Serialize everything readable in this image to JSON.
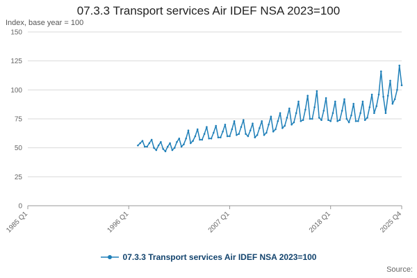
{
  "page": {
    "title": "07.3.3 Transport services Air IDEF NSA 2023=100",
    "subtitle": "Index, base year = 100",
    "source_label": "Source:"
  },
  "legend": {
    "label": "07.3.3 Transport services Air IDEF NSA 2023=100"
  },
  "colors": {
    "line": "#1e7fb8",
    "grid": "#d9d9d9",
    "axis_line": "#999999",
    "axis_text": "#666666",
    "title_text": "#222222",
    "legend_text": "#12436d"
  },
  "chart_data": {
    "type": "line",
    "title": "07.3.3 Transport services Air IDEF NSA 2023=100",
    "xlabel": "",
    "ylabel": "Index, base year = 100",
    "ylim": [
      0,
      150
    ],
    "y_ticks": [
      0,
      25,
      50,
      75,
      100,
      125,
      150
    ],
    "xlim": [
      "1985 Q1",
      "2025 Q4"
    ],
    "x_ticks": [
      "1985 Q1",
      "1996 Q1",
      "2007 Q1",
      "2018 Q1",
      "2025 Q4"
    ],
    "grid": "horizontal",
    "legend_position": "bottom",
    "series": [
      {
        "name": "07.3.3 Transport services Air IDEF NSA 2023=100",
        "x": [
          "1997 Q1",
          "1997 Q2",
          "1997 Q3",
          "1997 Q4",
          "1998 Q1",
          "1998 Q2",
          "1998 Q3",
          "1998 Q4",
          "1999 Q1",
          "1999 Q2",
          "1999 Q3",
          "1999 Q4",
          "2000 Q1",
          "2000 Q2",
          "2000 Q3",
          "2000 Q4",
          "2001 Q1",
          "2001 Q2",
          "2001 Q3",
          "2001 Q4",
          "2002 Q1",
          "2002 Q2",
          "2002 Q3",
          "2002 Q4",
          "2003 Q1",
          "2003 Q2",
          "2003 Q3",
          "2003 Q4",
          "2004 Q1",
          "2004 Q2",
          "2004 Q3",
          "2004 Q4",
          "2005 Q1",
          "2005 Q2",
          "2005 Q3",
          "2005 Q4",
          "2006 Q1",
          "2006 Q2",
          "2006 Q3",
          "2006 Q4",
          "2007 Q1",
          "2007 Q2",
          "2007 Q3",
          "2007 Q4",
          "2008 Q1",
          "2008 Q2",
          "2008 Q3",
          "2008 Q4",
          "2009 Q1",
          "2009 Q2",
          "2009 Q3",
          "2009 Q4",
          "2010 Q1",
          "2010 Q2",
          "2010 Q3",
          "2010 Q4",
          "2011 Q1",
          "2011 Q2",
          "2011 Q3",
          "2011 Q4",
          "2012 Q1",
          "2012 Q2",
          "2012 Q3",
          "2012 Q4",
          "2013 Q1",
          "2013 Q2",
          "2013 Q3",
          "2013 Q4",
          "2014 Q1",
          "2014 Q2",
          "2014 Q3",
          "2014 Q4",
          "2015 Q1",
          "2015 Q2",
          "2015 Q3",
          "2015 Q4",
          "2016 Q1",
          "2016 Q2",
          "2016 Q3",
          "2016 Q4",
          "2017 Q1",
          "2017 Q2",
          "2017 Q3",
          "2017 Q4",
          "2018 Q1",
          "2018 Q2",
          "2018 Q3",
          "2018 Q4",
          "2019 Q1",
          "2019 Q2",
          "2019 Q3",
          "2019 Q4",
          "2020 Q1",
          "2020 Q2",
          "2020 Q3",
          "2020 Q4",
          "2021 Q1",
          "2021 Q2",
          "2021 Q3",
          "2021 Q4",
          "2022 Q1",
          "2022 Q2",
          "2022 Q3",
          "2022 Q4",
          "2023 Q1",
          "2023 Q2",
          "2023 Q3",
          "2023 Q4",
          "2024 Q1",
          "2024 Q2",
          "2024 Q3",
          "2024 Q4",
          "2025 Q1",
          "2025 Q2",
          "2025 Q3",
          "2025 Q4"
        ],
        "values": [
          52,
          54,
          56,
          51,
          51,
          54,
          57,
          50,
          48,
          52,
          55,
          49,
          47,
          51,
          54,
          48,
          50,
          55,
          58,
          51,
          53,
          58,
          65,
          54,
          56,
          60,
          66,
          57,
          57,
          62,
          68,
          58,
          58,
          63,
          69,
          59,
          59,
          64,
          70,
          60,
          60,
          66,
          73,
          61,
          62,
          68,
          74,
          62,
          60,
          65,
          71,
          59,
          61,
          67,
          73,
          61,
          63,
          70,
          77,
          64,
          66,
          73,
          80,
          67,
          69,
          76,
          84,
          70,
          72,
          80,
          90,
          73,
          74,
          83,
          95,
          75,
          75,
          85,
          99,
          76,
          74,
          82,
          93,
          74,
          73,
          80,
          90,
          73,
          74,
          82,
          92,
          75,
          72,
          78,
          88,
          73,
          73,
          80,
          90,
          74,
          76,
          85,
          96,
          80,
          86,
          96,
          116,
          94,
          80,
          95,
          108,
          88,
          92,
          100,
          121,
          104
        ]
      }
    ]
  }
}
